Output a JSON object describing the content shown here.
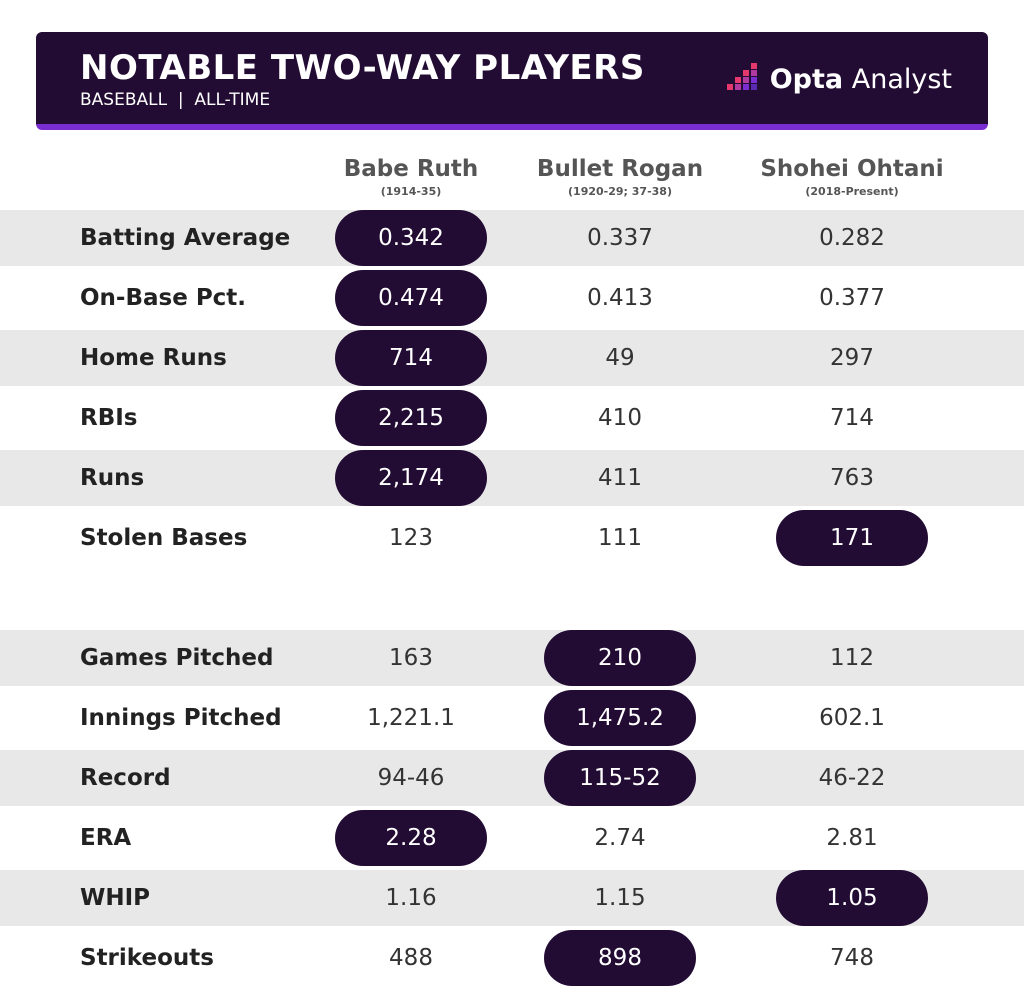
{
  "header": {
    "title": "NOTABLE TWO-WAY PLAYERS",
    "subtitle": "BASEBALL  |  ALL-TIME",
    "brand": {
      "name": "Opta",
      "product": "Analyst"
    }
  },
  "columns": [
    {
      "name": "Babe Ruth",
      "years": "(1914-35)"
    },
    {
      "name": "Bullet Rogan",
      "years": "(1920-29; 37-38)"
    },
    {
      "name": "Shohei Ohtani",
      "years": "(2018-Present)"
    }
  ],
  "sections": [
    {
      "rows": [
        {
          "label": "Batting Average",
          "values": [
            "0.342",
            "0.337",
            "0.282"
          ],
          "highlight": 0
        },
        {
          "label": "On-Base Pct.",
          "values": [
            "0.474",
            "0.413",
            "0.377"
          ],
          "highlight": 0
        },
        {
          "label": "Home Runs",
          "values": [
            "714",
            "49",
            "297"
          ],
          "highlight": 0
        },
        {
          "label": "RBIs",
          "values": [
            "2,215",
            "410",
            "714"
          ],
          "highlight": 0
        },
        {
          "label": "Runs",
          "values": [
            "2,174",
            "411",
            "763"
          ],
          "highlight": 0
        },
        {
          "label": "Stolen Bases",
          "values": [
            "123",
            "111",
            "171"
          ],
          "highlight": 2
        }
      ]
    },
    {
      "rows": [
        {
          "label": "Games Pitched",
          "values": [
            "163",
            "210",
            "112"
          ],
          "highlight": 1
        },
        {
          "label": "Innings Pitched",
          "values": [
            "1,221.1",
            "1,475.2",
            "602.1"
          ],
          "highlight": 1
        },
        {
          "label": "Record",
          "values": [
            "94-46",
            "115-52",
            "46-22"
          ],
          "highlight": 1
        },
        {
          "label": "ERA",
          "values": [
            "2.28",
            "2.74",
            "2.81"
          ],
          "highlight": 0
        },
        {
          "label": "WHIP",
          "values": [
            "1.16",
            "1.15",
            "1.05"
          ],
          "highlight": 2
        },
        {
          "label": "Strikeouts",
          "values": [
            "488",
            "898",
            "748"
          ],
          "highlight": 1
        }
      ]
    }
  ]
}
